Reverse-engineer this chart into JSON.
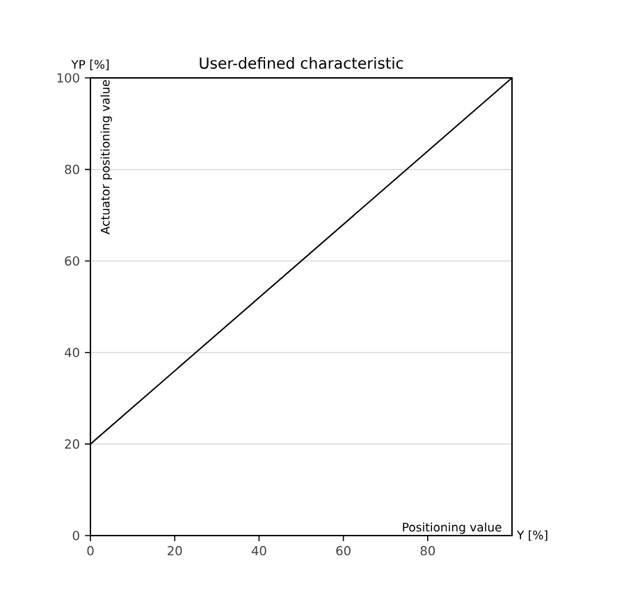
{
  "chart_data": {
    "type": "line",
    "title": "User-defined characteristic",
    "xlabel": "Y [%]",
    "ylabel": "YP [%]",
    "annotations": [
      "Actuator positioning value",
      "Positioning value"
    ],
    "x": [
      0,
      100
    ],
    "series": [
      {
        "color": "#000000",
        "values": [
          20,
          100
        ]
      }
    ],
    "xlim": [
      0,
      100
    ],
    "xticks": [
      0,
      20,
      40,
      60,
      80
    ],
    "ylim": [
      0,
      100
    ],
    "yticks": [
      0,
      20,
      40,
      60,
      80,
      100
    ],
    "grid": "y",
    "marker": "none",
    "line_style": "solid"
  }
}
